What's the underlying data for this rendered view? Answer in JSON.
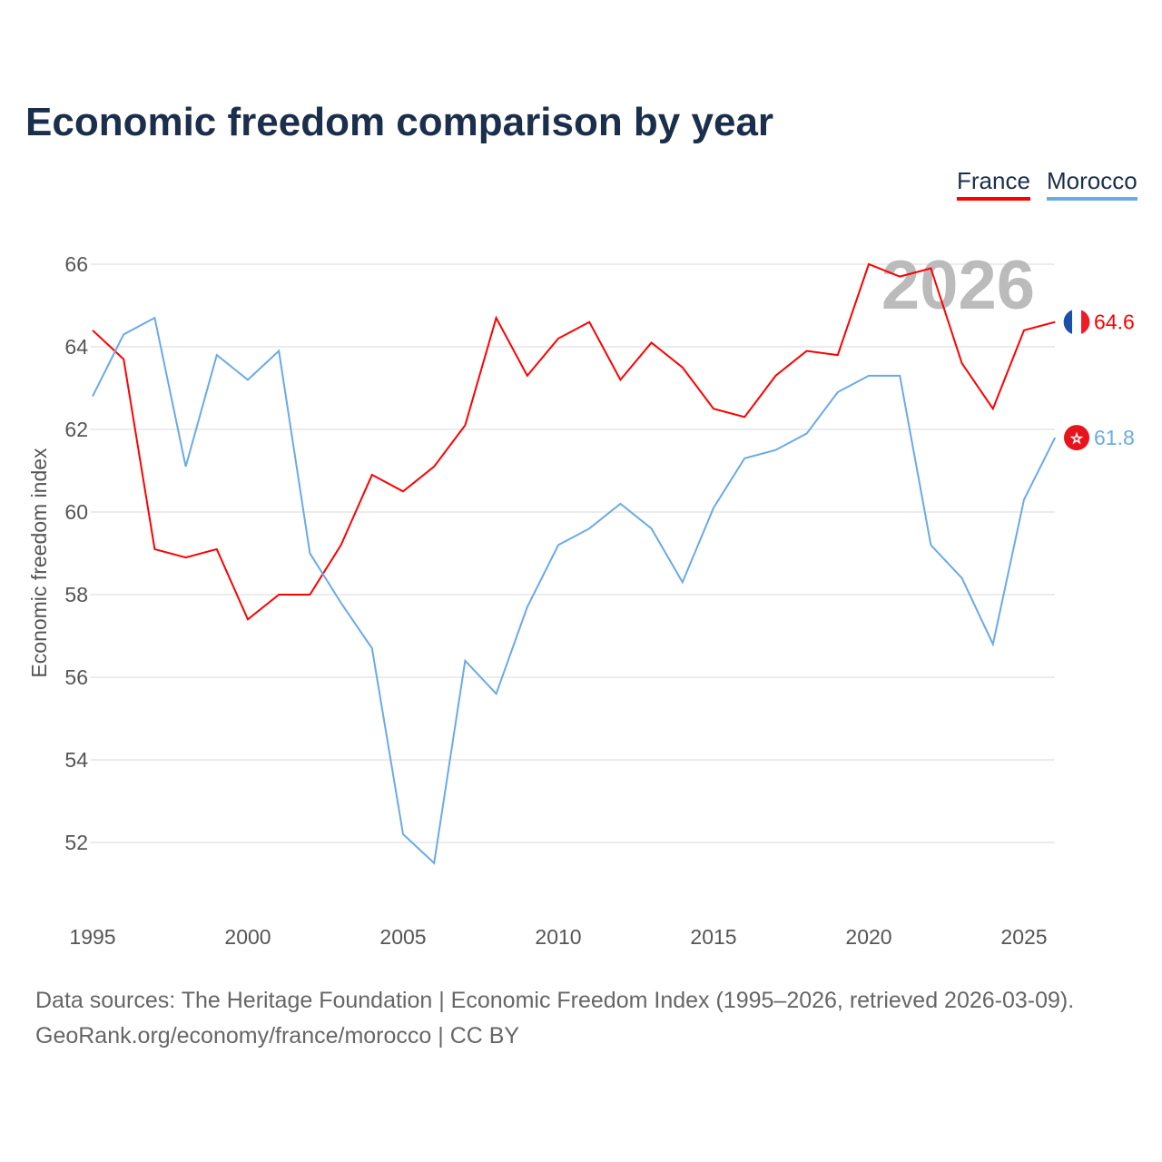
{
  "chart_data": {
    "type": "line",
    "title": "Economic freedom comparison by year",
    "ylabel": "Economic freedom index",
    "xlabel": "",
    "ylim": [
      50.6,
      67
    ],
    "xlim": [
      1995,
      2026
    ],
    "yticks": [
      52,
      54,
      56,
      58,
      60,
      62,
      64,
      66
    ],
    "xticks": [
      1995,
      2000,
      2005,
      2010,
      2015,
      2020,
      2025
    ],
    "watermark_year": "2026",
    "grid": true,
    "legend_position": "top-right",
    "x": [
      1995,
      1996,
      1997,
      1998,
      1999,
      2000,
      2001,
      2002,
      2003,
      2004,
      2005,
      2006,
      2007,
      2008,
      2009,
      2010,
      2011,
      2012,
      2013,
      2014,
      2015,
      2016,
      2017,
      2018,
      2019,
      2020,
      2021,
      2022,
      2023,
      2024,
      2025,
      2026
    ],
    "series": [
      {
        "name": "France",
        "color": "#ff0000",
        "end_label": "64.6",
        "values": [
          64.4,
          63.7,
          59.1,
          58.9,
          59.1,
          57.4,
          58.0,
          58.0,
          59.2,
          60.9,
          60.5,
          61.1,
          62.1,
          64.7,
          63.3,
          64.2,
          64.6,
          63.2,
          64.1,
          63.5,
          62.5,
          62.3,
          63.3,
          63.9,
          63.8,
          66.0,
          65.7,
          65.9,
          63.6,
          62.5,
          64.4,
          64.6
        ]
      },
      {
        "name": "Morocco",
        "color": "#6aaae8",
        "end_label": "61.8",
        "values": [
          62.8,
          64.3,
          64.7,
          61.1,
          63.8,
          63.2,
          63.9,
          59.0,
          57.8,
          56.7,
          52.2,
          51.5,
          56.4,
          55.6,
          57.7,
          59.2,
          59.6,
          60.2,
          59.6,
          58.3,
          60.1,
          61.3,
          61.5,
          61.9,
          62.9,
          63.3,
          63.3,
          59.2,
          58.4,
          56.8,
          60.3,
          61.8
        ]
      }
    ]
  },
  "footer": {
    "line1": "Data sources: The Heritage Foundation | Economic Freedom Index (1995–2026, retrieved 2026-03-09).",
    "line2": "GeoRank.org/economy/france/morocco | CC BY"
  }
}
